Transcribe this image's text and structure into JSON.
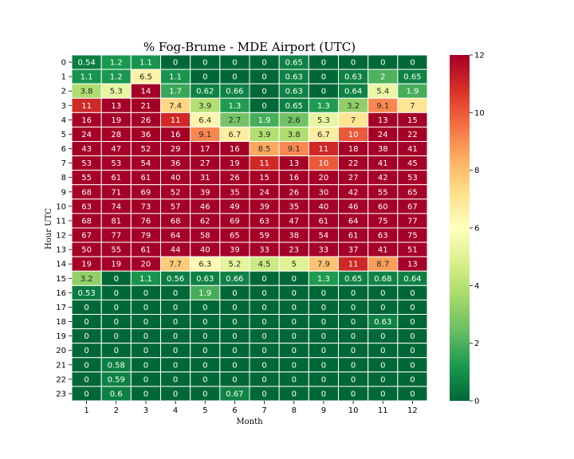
{
  "chart_data": {
    "type": "heatmap",
    "title": "% Fog-Brume - MDE Airport (UTC)",
    "xlabel": "Month",
    "ylabel": "Hour UTC",
    "x_categories": [
      "1",
      "2",
      "3",
      "4",
      "5",
      "6",
      "7",
      "8",
      "9",
      "10",
      "11",
      "12"
    ],
    "y_categories": [
      "0",
      "1",
      "2",
      "3",
      "4",
      "5",
      "6",
      "7",
      "8",
      "9",
      "10",
      "11",
      "12",
      "13",
      "14",
      "15",
      "16",
      "17",
      "18",
      "19",
      "20",
      "21",
      "22",
      "23"
    ],
    "values": [
      [
        0.54,
        1.2,
        1.1,
        0,
        0,
        0,
        0,
        0.65,
        0,
        0,
        0,
        0
      ],
      [
        1.1,
        1.2,
        6.5,
        1.1,
        0,
        0,
        0,
        0.63,
        0,
        0.63,
        2,
        0.65
      ],
      [
        3.8,
        5.3,
        14,
        1.7,
        0.62,
        0.66,
        0,
        0.63,
        0,
        0.64,
        5.4,
        1.9
      ],
      [
        11,
        13,
        21,
        7.4,
        3.9,
        1.3,
        0,
        0.65,
        1.3,
        3.2,
        9.1,
        7
      ],
      [
        16,
        19,
        26,
        11,
        6.4,
        2.7,
        1.9,
        2.6,
        5.3,
        7,
        13,
        15
      ],
      [
        24,
        28,
        36,
        16,
        9.1,
        6.7,
        3.9,
        3.8,
        6.7,
        10,
        24,
        22
      ],
      [
        43,
        47,
        52,
        29,
        17,
        16,
        8.5,
        9.1,
        11,
        18,
        38,
        41
      ],
      [
        53,
        53,
        54,
        36,
        27,
        19,
        11,
        13,
        10,
        22,
        41,
        45
      ],
      [
        55,
        61,
        61,
        40,
        31,
        26,
        15,
        16,
        20,
        27,
        42,
        53
      ],
      [
        68,
        71,
        69,
        52,
        39,
        35,
        24,
        26,
        30,
        42,
        55,
        65
      ],
      [
        63,
        74,
        73,
        57,
        46,
        49,
        39,
        35,
        40,
        46,
        60,
        67
      ],
      [
        68,
        81,
        76,
        68,
        62,
        69,
        63,
        47,
        61,
        64,
        75,
        77
      ],
      [
        67,
        77,
        79,
        64,
        58,
        65,
        59,
        38,
        54,
        61,
        63,
        75
      ],
      [
        50,
        55,
        61,
        44,
        40,
        39,
        33,
        23,
        33,
        37,
        41,
        51
      ],
      [
        19,
        19,
        20,
        7.7,
        6.3,
        5.2,
        4.5,
        5,
        7.9,
        11,
        8.7,
        13
      ],
      [
        3.2,
        0,
        1.1,
        0.56,
        0.63,
        0.66,
        0,
        0,
        1.3,
        0.65,
        0.68,
        0.64
      ],
      [
        0.53,
        0,
        0,
        0,
        1.9,
        0,
        0,
        0,
        0,
        0,
        0,
        0
      ],
      [
        0,
        0,
        0,
        0,
        0,
        0,
        0,
        0,
        0,
        0,
        0,
        0
      ],
      [
        0,
        0,
        0,
        0,
        0,
        0,
        0,
        0,
        0,
        0,
        0.63,
        0
      ],
      [
        0,
        0,
        0,
        0,
        0,
        0,
        0,
        0,
        0,
        0,
        0,
        0
      ],
      [
        0,
        0,
        0,
        0,
        0,
        0,
        0,
        0,
        0,
        0,
        0,
        0
      ],
      [
        0,
        0.58,
        0,
        0,
        0,
        0,
        0,
        0,
        0,
        0,
        0,
        0
      ],
      [
        0,
        0.59,
        0,
        0,
        0,
        0,
        0,
        0,
        0,
        0,
        0,
        0
      ],
      [
        0,
        0.6,
        0,
        0,
        0,
        0.67,
        0,
        0,
        0,
        0,
        0,
        0
      ]
    ],
    "colormap": "RdYlGn_r",
    "vmin": 0,
    "vmax": 12,
    "colorbar_ticks": [
      "0",
      "2",
      "4",
      "6",
      "8",
      "10",
      "12"
    ],
    "cell_edge_color": "#ffffff",
    "annotations": true
  }
}
